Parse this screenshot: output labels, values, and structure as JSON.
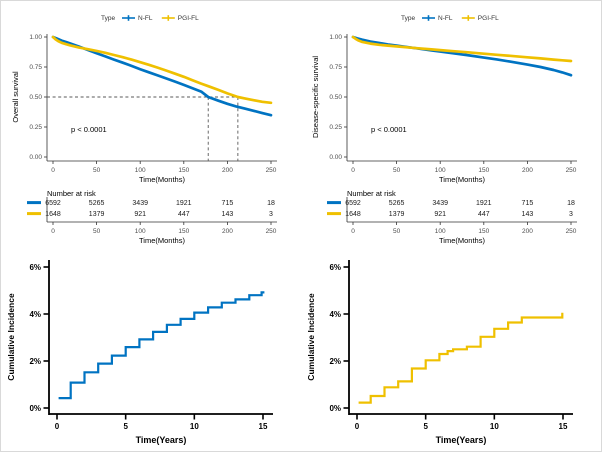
{
  "palette": {
    "n_fl_blue": "#0073C2",
    "pgi_fl_yellow": "#EFC000"
  },
  "chart_data": [
    {
      "type": "line",
      "panel": "overall-survival",
      "ylabel": "Overall survival",
      "xlabel": "Time(Months)",
      "pvalue": "p < 0.0001",
      "legend": {
        "title": "Type",
        "items": [
          {
            "label": "N-FL",
            "color": "#0073C2"
          },
          {
            "label": "PGI-FL",
            "color": "#EFC000"
          }
        ]
      },
      "xticks": [
        0,
        50,
        100,
        150,
        200,
        250
      ],
      "yticks": [
        1,
        0.75,
        0.5,
        0.25,
        0
      ],
      "ytick_labels": [
        "1.00",
        "0.75",
        "0.50",
        "0.25",
        "0.00"
      ],
      "xlim": [
        0,
        257
      ],
      "ylim": [
        0,
        1
      ],
      "median_survival": {
        "y": 0.5,
        "times_months": [
          178,
          212
        ]
      },
      "series": [
        {
          "name": "N-FL",
          "color": "#0073C2",
          "points": [
            [
              0,
              1
            ],
            [
              5,
              0.985
            ],
            [
              10,
              0.97
            ],
            [
              15,
              0.958
            ],
            [
              20,
              0.946
            ],
            [
              30,
              0.92
            ],
            [
              40,
              0.892
            ],
            [
              50,
              0.864
            ],
            [
              60,
              0.838
            ],
            [
              70,
              0.812
            ],
            [
              80,
              0.786
            ],
            [
              90,
              0.759
            ],
            [
              100,
              0.732
            ],
            [
              110,
              0.706
            ],
            [
              120,
              0.68
            ],
            [
              130,
              0.654
            ],
            [
              140,
              0.628
            ],
            [
              150,
              0.601
            ],
            [
              160,
              0.573
            ],
            [
              170,
              0.545
            ],
            [
              178,
              0.5
            ],
            [
              190,
              0.468
            ],
            [
              200,
              0.443
            ],
            [
              210,
              0.422
            ],
            [
              220,
              0.403
            ],
            [
              230,
              0.385
            ],
            [
              240,
              0.366
            ],
            [
              250,
              0.348
            ]
          ]
        },
        {
          "name": "PGI-FL",
          "color": "#EFC000",
          "points": [
            [
              0,
              1
            ],
            [
              3,
              0.98
            ],
            [
              6,
              0.966
            ],
            [
              10,
              0.952
            ],
            [
              15,
              0.94
            ],
            [
              20,
              0.93
            ],
            [
              30,
              0.912
            ],
            [
              40,
              0.898
            ],
            [
              50,
              0.884
            ],
            [
              60,
              0.868
            ],
            [
              70,
              0.85
            ],
            [
              80,
              0.832
            ],
            [
              90,
              0.812
            ],
            [
              100,
              0.79
            ],
            [
              110,
              0.768
            ],
            [
              120,
              0.745
            ],
            [
              130,
              0.72
            ],
            [
              140,
              0.694
            ],
            [
              150,
              0.668
            ],
            [
              160,
              0.64
            ],
            [
              170,
              0.612
            ],
            [
              180,
              0.585
            ],
            [
              190,
              0.558
            ],
            [
              200,
              0.53
            ],
            [
              212,
              0.5
            ],
            [
              220,
              0.488
            ],
            [
              230,
              0.473
            ],
            [
              240,
              0.46
            ],
            [
              250,
              0.452
            ]
          ]
        }
      ],
      "risk_table": {
        "title": "Number at risk",
        "xlabel": "Time(Months)",
        "xticks": [
          0,
          50,
          100,
          150,
          200,
          250
        ],
        "rows": [
          {
            "name": "N-FL",
            "color": "#0073C2",
            "counts": [
              "6592",
              "5265",
              "3439",
              "1921",
              "715",
              "18"
            ]
          },
          {
            "name": "PGI-FL",
            "color": "#EFC000",
            "counts": [
              "1648",
              "1379",
              "921",
              "447",
              "143",
              "3"
            ]
          }
        ]
      }
    },
    {
      "type": "line",
      "panel": "disease-specific-survival",
      "ylabel": "Disease-specific survival",
      "xlabel": "Time(Months)",
      "pvalue": "p < 0.0001",
      "legend": {
        "title": "Type",
        "items": [
          {
            "label": "N-FL",
            "color": "#0073C2"
          },
          {
            "label": "PGI-FL",
            "color": "#EFC000"
          }
        ]
      },
      "xticks": [
        0,
        50,
        100,
        150,
        200,
        250
      ],
      "yticks": [
        1,
        0.75,
        0.5,
        0.25,
        0
      ],
      "ytick_labels": [
        "1.00",
        "0.75",
        "0.50",
        "0.25",
        "0.00"
      ],
      "xlim": [
        0,
        257
      ],
      "ylim": [
        0,
        1
      ],
      "series": [
        {
          "name": "N-FL",
          "color": "#0073C2",
          "points": [
            [
              0,
              1
            ],
            [
              5,
              0.988
            ],
            [
              10,
              0.978
            ],
            [
              20,
              0.962
            ],
            [
              30,
              0.95
            ],
            [
              40,
              0.938
            ],
            [
              50,
              0.928
            ],
            [
              60,
              0.918
            ],
            [
              75,
              0.903
            ],
            [
              90,
              0.888
            ],
            [
              100,
              0.878
            ],
            [
              115,
              0.864
            ],
            [
              130,
              0.85
            ],
            [
              150,
              0.828
            ],
            [
              165,
              0.813
            ],
            [
              180,
              0.795
            ],
            [
              200,
              0.77
            ],
            [
              215,
              0.75
            ],
            [
              230,
              0.725
            ],
            [
              240,
              0.705
            ],
            [
              250,
              0.682
            ]
          ]
        },
        {
          "name": "PGI-FL",
          "color": "#EFC000",
          "points": [
            [
              0,
              1
            ],
            [
              3,
              0.985
            ],
            [
              6,
              0.972
            ],
            [
              10,
              0.96
            ],
            [
              20,
              0.945
            ],
            [
              30,
              0.935
            ],
            [
              40,
              0.928
            ],
            [
              50,
              0.922
            ],
            [
              60,
              0.915
            ],
            [
              75,
              0.906
            ],
            [
              90,
              0.897
            ],
            [
              100,
              0.891
            ],
            [
              115,
              0.882
            ],
            [
              130,
              0.873
            ],
            [
              150,
              0.861
            ],
            [
              165,
              0.852
            ],
            [
              180,
              0.843
            ],
            [
              200,
              0.831
            ],
            [
              215,
              0.822
            ],
            [
              230,
              0.812
            ],
            [
              240,
              0.806
            ],
            [
              250,
              0.8
            ]
          ]
        }
      ],
      "risk_table": {
        "title": "Number at risk",
        "xlabel": "Time(Months)",
        "xticks": [
          0,
          50,
          100,
          150,
          200,
          250
        ],
        "rows": [
          {
            "name": "N-FL",
            "color": "#0073C2",
            "counts": [
              "6592",
              "5265",
              "3439",
              "1921",
              "715",
              "18"
            ]
          },
          {
            "name": "PGI-FL",
            "color": "#EFC000",
            "counts": [
              "1648",
              "1379",
              "921",
              "447",
              "143",
              "3"
            ]
          }
        ]
      }
    },
    {
      "type": "line",
      "panel": "cumulative-incidence-n-fl",
      "step": true,
      "name": "N-FL",
      "color": "#0073C2",
      "ylabel": "Cumulative Incidence",
      "xlabel": "Time(Years)",
      "xticks": [
        0,
        5,
        10,
        15
      ],
      "yticks": [
        0,
        2,
        4,
        6
      ],
      "ytick_labels": [
        "0%",
        "2%",
        "4%",
        "6%"
      ],
      "xlim": [
        0,
        15.5
      ],
      "ylim": [
        0,
        6
      ],
      "step_points": [
        [
          0.12,
          0.42
        ],
        [
          1,
          1.08
        ],
        [
          2,
          1.52
        ],
        [
          3,
          1.89
        ],
        [
          4,
          2.23
        ],
        [
          5,
          2.59
        ],
        [
          6,
          2.92
        ],
        [
          7,
          3.24
        ],
        [
          8,
          3.54
        ],
        [
          9,
          3.79
        ],
        [
          10,
          4.06
        ],
        [
          11,
          4.28
        ],
        [
          12,
          4.48
        ],
        [
          13,
          4.62
        ],
        [
          14,
          4.8
        ],
        [
          14.9,
          4.92
        ]
      ],
      "end_x": 15.1
    },
    {
      "type": "line",
      "panel": "cumulative-incidence-pgi-fl",
      "step": true,
      "name": "PGI-FL",
      "color": "#EFC000",
      "ylabel": "Cumulative Incidence",
      "xlabel": "Time(Years)",
      "xticks": [
        0,
        5,
        10,
        15
      ],
      "yticks": [
        0,
        2,
        4,
        6
      ],
      "ytick_labels": [
        "0%",
        "2%",
        "4%",
        "6%"
      ],
      "xlim": [
        0,
        15.5
      ],
      "ylim": [
        0,
        6
      ],
      "step_points": [
        [
          0.12,
          0.23
        ],
        [
          1,
          0.51
        ],
        [
          2,
          0.88
        ],
        [
          3,
          1.13
        ],
        [
          4,
          1.68
        ],
        [
          5,
          2.03
        ],
        [
          6,
          2.3
        ],
        [
          6.6,
          2.42
        ],
        [
          7,
          2.5
        ],
        [
          8,
          2.61
        ],
        [
          9,
          3.03
        ],
        [
          10,
          3.37
        ],
        [
          11,
          3.64
        ],
        [
          12,
          3.85
        ],
        [
          14.95,
          4.05
        ]
      ],
      "end_x": 14.95
    }
  ]
}
